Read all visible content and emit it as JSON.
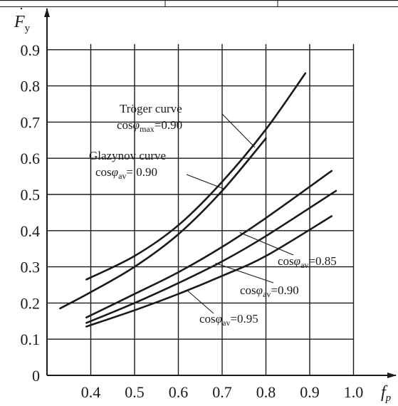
{
  "chart_data": {
    "type": "line",
    "xlabel": "f",
    "xlabel_sub": "p",
    "ylabel": "F",
    "ylabel_sub": "y",
    "xlim": [
      0.3,
      1.05
    ],
    "ylim": [
      0,
      0.95
    ],
    "x_ticks": [
      "0.4",
      "0.5",
      "0.6",
      "0.7",
      "0.8",
      "0.9",
      "1.0"
    ],
    "x_tick_values": [
      0.4,
      0.5,
      0.6,
      0.7,
      0.8,
      0.9,
      1.0
    ],
    "y_ticks": [
      "0",
      "0.1",
      "0.2",
      "0.3",
      "0.4",
      "0.5",
      "0.6",
      "0.7",
      "0.8",
      "0.9"
    ],
    "y_tick_values": [
      0,
      0.1,
      0.2,
      0.3,
      0.4,
      0.5,
      0.6,
      0.7,
      0.8,
      0.9
    ],
    "grid": true,
    "series": [
      {
        "x": [
          0.39,
          0.5,
          0.6,
          0.7,
          0.8,
          0.89
        ],
        "y": [
          0.265,
          0.33,
          0.415,
          0.535,
          0.68,
          0.835
        ]
      },
      {
        "x": [
          0.33,
          0.4,
          0.5,
          0.6,
          0.7,
          0.8
        ],
        "y": [
          0.185,
          0.23,
          0.3,
          0.39,
          0.51,
          0.655
        ]
      },
      {
        "x": [
          0.39,
          0.5,
          0.6,
          0.7,
          0.8,
          0.95
        ],
        "y": [
          0.16,
          0.225,
          0.285,
          0.355,
          0.435,
          0.565
        ]
      },
      {
        "x": [
          0.39,
          0.5,
          0.6,
          0.7,
          0.8,
          0.96
        ],
        "y": [
          0.145,
          0.2,
          0.255,
          0.315,
          0.385,
          0.51
        ]
      },
      {
        "x": [
          0.39,
          0.5,
          0.6,
          0.7,
          0.8,
          0.95
        ],
        "y": [
          0.135,
          0.18,
          0.225,
          0.275,
          0.33,
          0.44
        ]
      }
    ],
    "annotations": [
      {
        "lines": [
          "Tröger curve",
          "cosφmax=0.90"
        ],
        "series_index": 0
      },
      {
        "lines": [
          "Glazynov curve",
          "cosφav= 0.90"
        ],
        "series_index": 1
      },
      {
        "text": "cosφav=0.85",
        "series_index": 2
      },
      {
        "text": "cosφav=0.90",
        "series_index": 3
      },
      {
        "text": "cosφav=0.95",
        "series_index": 4
      }
    ],
    "annotation_parts": {
      "troger_title": "Tröger curve",
      "cos": "cos",
      "phi": "φ",
      "max": "max",
      "av": "av",
      "eq_090": "=0.90",
      "eq_090_sp": "= 0.90",
      "eq_085": "=0.85",
      "eq_095": "=0.95",
      "glazynov_title": "Glazynov curve"
    }
  }
}
